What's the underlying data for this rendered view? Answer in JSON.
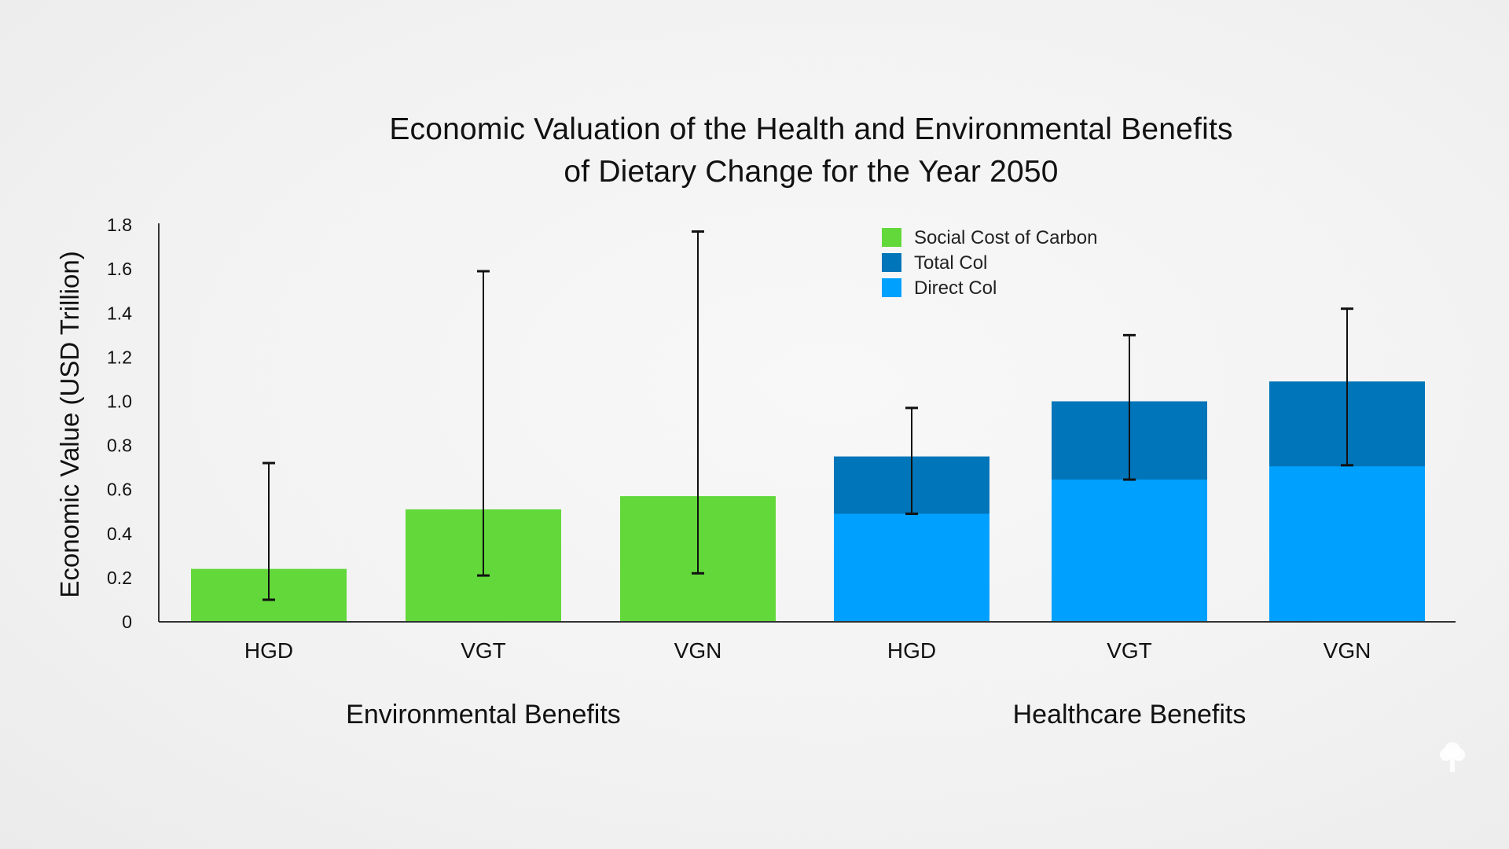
{
  "chart_data": {
    "type": "bar",
    "title_lines": [
      "Economic Valuation of the Health and Environmental Benefits",
      "of Dietary Change for the Year 2050"
    ],
    "xlabel": "",
    "ylabel": "Economic Value (USD Trillion)",
    "ylim": [
      0,
      1.8
    ],
    "yticks": [
      0,
      0.2,
      0.4,
      0.6,
      0.8,
      1.0,
      1.2,
      1.4,
      1.6,
      1.8
    ],
    "ytick_labels": [
      "0",
      "0.2",
      "0.4",
      "0.6",
      "0.8",
      "1.0",
      "1.2",
      "1.4",
      "1.6",
      "1.8"
    ],
    "grid": false,
    "legend_position": "top-center",
    "groups": [
      {
        "name": "Environmental Benefits",
        "categories": [
          "HGD",
          "VGT",
          "VGN"
        ],
        "series": [
          {
            "name": "Social Cost of Carbon",
            "color": "#62d83a",
            "values": [
              0.24,
              0.51,
              0.57
            ]
          }
        ],
        "error_bars": [
          {
            "low": 0.1,
            "high": 0.72
          },
          {
            "low": 0.21,
            "high": 1.59
          },
          {
            "low": 0.22,
            "high": 1.77
          }
        ]
      },
      {
        "name": "Healthcare Benefits",
        "categories": [
          "HGD",
          "VGT",
          "VGN"
        ],
        "series": [
          {
            "name": "Direct Col",
            "color": "#00a0ff",
            "values": [
              0.49,
              0.645,
              0.705
            ]
          },
          {
            "name": "Total Col",
            "color": "#0075b9",
            "values": [
              0.75,
              1.0,
              1.09
            ]
          }
        ],
        "error_bars": [
          {
            "low": 0.49,
            "high": 0.97
          },
          {
            "low": 0.645,
            "high": 1.3
          },
          {
            "low": 0.71,
            "high": 1.42
          }
        ]
      }
    ],
    "legend": [
      {
        "label": "Social Cost of Carbon",
        "color": "#62d83a"
      },
      {
        "label": "Total Col",
        "color": "#0075b9"
      },
      {
        "label": "Direct Col",
        "color": "#00a0ff"
      }
    ]
  },
  "watermark_icon": "tree-icon"
}
